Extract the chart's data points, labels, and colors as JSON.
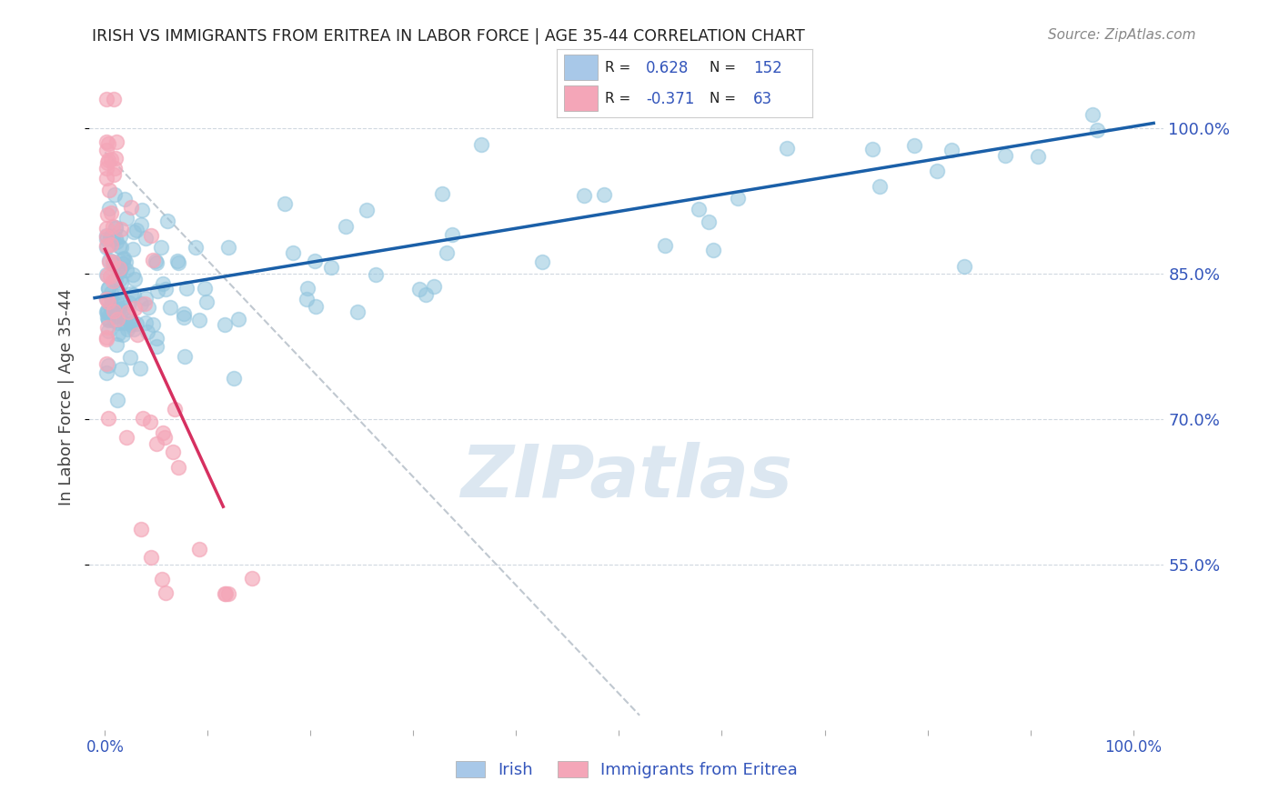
{
  "title": "IRISH VS IMMIGRANTS FROM ERITREA IN LABOR FORCE | AGE 35-44 CORRELATION CHART",
  "source": "Source: ZipAtlas.com",
  "ylabel": "In Labor Force | Age 35-44",
  "y_tick_labels": [
    "55.0%",
    "70.0%",
    "85.0%",
    "100.0%"
  ],
  "y_tick_values": [
    0.55,
    0.7,
    0.85,
    1.0
  ],
  "irish_R": 0.628,
  "irish_N": 152,
  "eritrea_R": -0.371,
  "eritrea_N": 63,
  "blue_scatter_color": "#92c5de",
  "blue_edge_color": "#5ba3cb",
  "blue_line_color": "#1a5fa8",
  "pink_scatter_color": "#f4a6b8",
  "pink_edge_color": "#e07090",
  "pink_line_color": "#d63060",
  "legend_box_blue": "#a8c8e8",
  "legend_box_pink": "#f4a6b8",
  "watermark_text": "ZIPatlas",
  "watermark_color": "#c5d8e8",
  "background_color": "#ffffff",
  "grid_color": "#d0d8e0",
  "title_color": "#222222",
  "axis_label_color": "#444444",
  "tick_color": "#3355bb",
  "source_color": "#888888",
  "ylim_min": 0.38,
  "ylim_max": 1.065
}
